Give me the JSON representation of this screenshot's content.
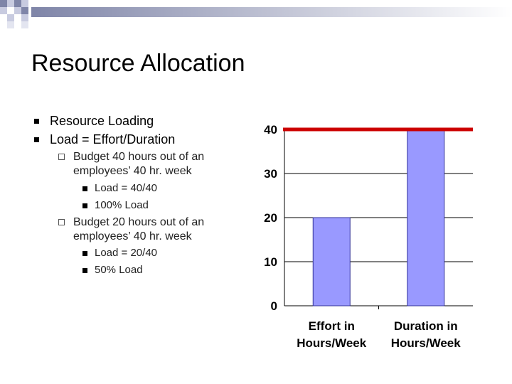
{
  "slide": {
    "title": "Resource Allocation",
    "bullets": [
      {
        "text": "Resource Loading",
        "level": 1
      },
      {
        "text": "Load = Effort/Duration",
        "level": 1
      },
      {
        "text": "Budget 40 hours out of an",
        "level": 2
      },
      {
        "text": "employees’ 40 hr. week",
        "level": 2,
        "continuation": true
      },
      {
        "text": "Load = 40/40",
        "level": 3
      },
      {
        "text": "100% Load",
        "level": 3
      },
      {
        "text": "Budget 20 hours out of an",
        "level": 2
      },
      {
        "text": "employees’ 40 hr. week",
        "level": 2,
        "continuation": true
      },
      {
        "text": "Load = 20/40",
        "level": 3
      },
      {
        "text": "50% Load",
        "level": 3
      }
    ]
  },
  "chart_data": {
    "type": "bar",
    "categories": [
      [
        "Effort in",
        "Hours/Week"
      ],
      [
        "Duration in",
        "Hours/Week"
      ]
    ],
    "values": [
      20,
      40
    ],
    "ylim": [
      0,
      40
    ],
    "yticks": [
      "0",
      "10",
      "20",
      "30",
      "40"
    ],
    "reference_line": 40,
    "grid": true,
    "colors": {
      "bar": "#9999ff",
      "bar_border": "#333399",
      "reference_line": "#cc0000",
      "grid": "#000000"
    }
  }
}
